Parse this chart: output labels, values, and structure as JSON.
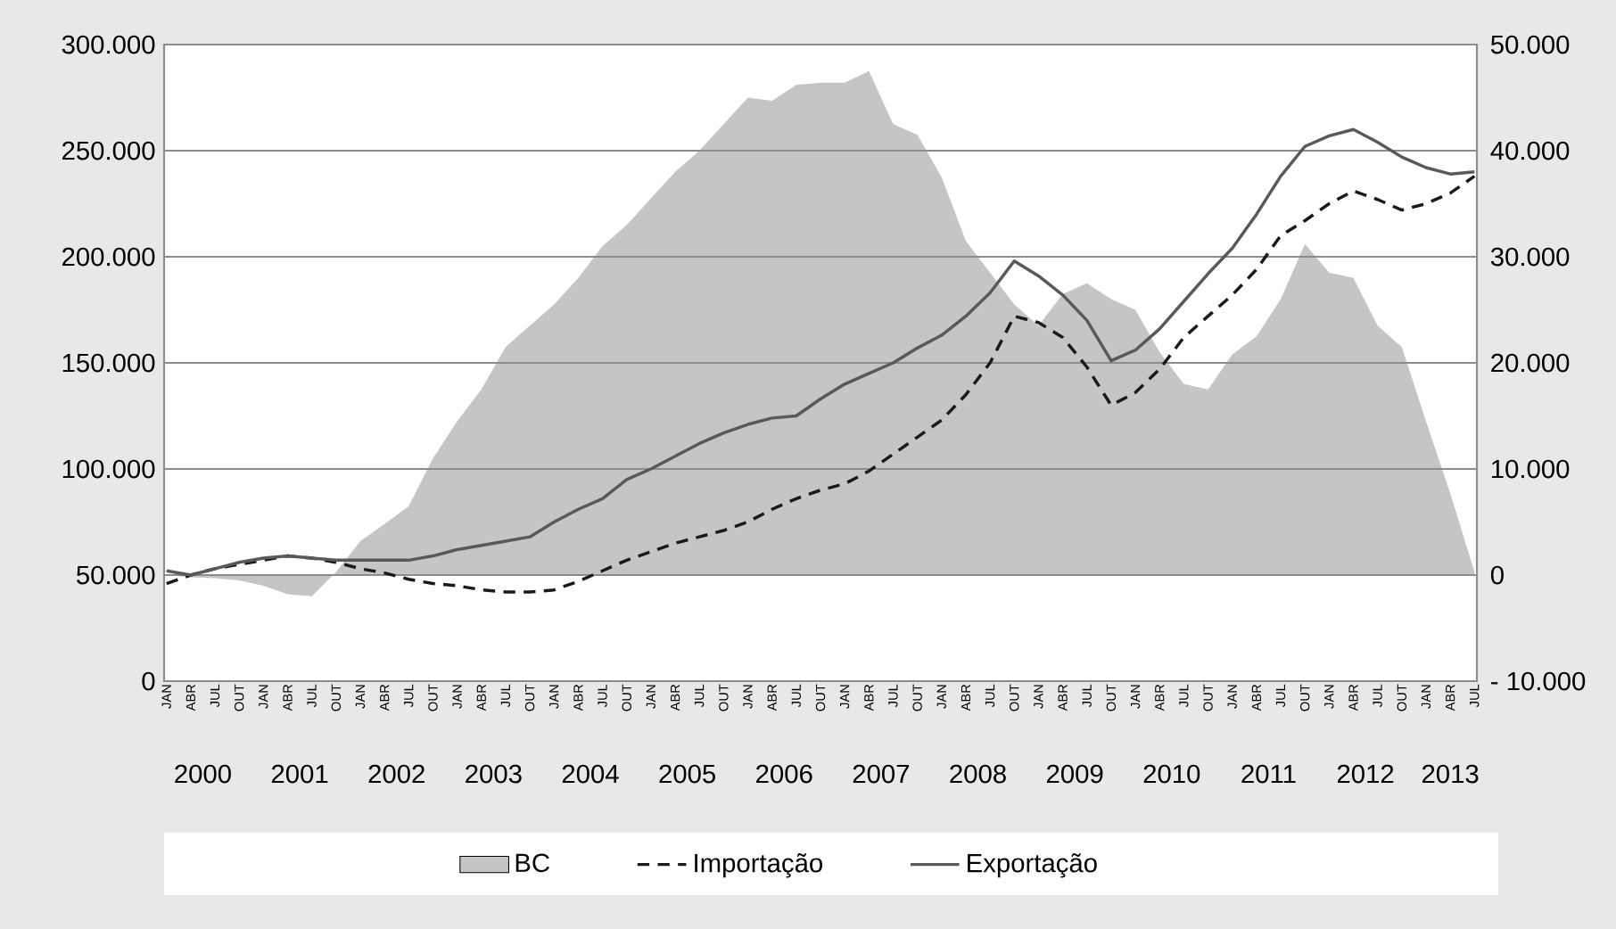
{
  "chart_data": {
    "type": "line",
    "categories": [
      "JAN",
      "ABR",
      "JUL",
      "OUT",
      "JAN",
      "ABR",
      "JUL",
      "OUT",
      "JAN",
      "ABR",
      "JUL",
      "OUT",
      "JAN",
      "ABR",
      "JUL",
      "OUT",
      "JAN",
      "ABR",
      "JUL",
      "OUT",
      "JAN",
      "ABR",
      "JUL",
      "OUT",
      "JAN",
      "ABR",
      "JUL",
      "OUT",
      "JAN",
      "ABR",
      "JUL",
      "OUT",
      "JAN",
      "ABR",
      "JUL",
      "OUT",
      "JAN",
      "ABR",
      "JUL",
      "OUT",
      "JAN",
      "ABR",
      "JUL",
      "OUT",
      "JAN",
      "ABR",
      "JUL",
      "OUT",
      "JAN",
      "ABR",
      "JUL",
      "OUT",
      "JAN",
      "ABR",
      "JUL"
    ],
    "series": [
      {
        "name": "BC",
        "type": "area",
        "axis": "y2",
        "color": "#c4c5c7",
        "values": [
          0,
          -200,
          -300,
          -500,
          -1000,
          -1800,
          -2000,
          300,
          3200,
          4800,
          6500,
          11000,
          14500,
          17500,
          21500,
          23500,
          25500,
          28000,
          31000,
          33000,
          35500,
          38000,
          40000,
          42500,
          45000,
          44700,
          46200,
          46400,
          46400,
          47500,
          42500,
          41500,
          37500,
          31500,
          28500,
          25500,
          23500,
          26500,
          27500,
          26000,
          25000,
          21000,
          18000,
          17500,
          20800,
          22500,
          26000,
          31200,
          28500,
          28000,
          23500,
          21500,
          14500,
          7700,
          300
        ]
      },
      {
        "name": "Importação",
        "line_style": "dashed",
        "color": "#1a1a1a",
        "values": [
          46000,
          50000,
          53000,
          55000,
          57000,
          59000,
          58000,
          56000,
          53000,
          51000,
          48000,
          46000,
          45000,
          43000,
          42000,
          42000,
          43000,
          47000,
          52000,
          57000,
          61000,
          65000,
          68000,
          71000,
          75000,
          81000,
          86000,
          90000,
          93000,
          99000,
          107000,
          115000,
          123000,
          135000,
          150000,
          172000,
          169000,
          162000,
          148000,
          130000,
          136000,
          147000,
          162000,
          172000,
          182000,
          194000,
          210000,
          217000,
          225000,
          231000,
          227000,
          222000,
          225000,
          230000,
          238000
        ]
      },
      {
        "name": "Exportação",
        "line_style": "solid",
        "color": "#595959",
        "values": [
          52000,
          50000,
          53000,
          56000,
          58000,
          59000,
          58000,
          57000,
          57000,
          57000,
          57000,
          59000,
          62000,
          64000,
          66000,
          68000,
          75000,
          81000,
          86000,
          95000,
          100000,
          106000,
          112000,
          117000,
          121000,
          124000,
          125000,
          133000,
          140000,
          145000,
          150000,
          157000,
          163000,
          172000,
          183000,
          198000,
          191000,
          182000,
          170000,
          151000,
          156000,
          166000,
          179000,
          192000,
          204000,
          220000,
          238000,
          252000,
          257000,
          260000,
          254000,
          247000,
          242000,
          239000,
          240000
        ]
      }
    ],
    "ylim": [
      0,
      300000
    ],
    "yticks": [
      0,
      {
        "value": 50000,
        "label": "50.000"
      },
      {
        "value": 100000,
        "label": "100.000"
      },
      {
        "value": 150000,
        "label": "150.000"
      },
      {
        "value": 200000,
        "label": "200.000"
      },
      {
        "value": 250000,
        "label": "250.000"
      },
      {
        "value": 300000,
        "label": "300.000"
      }
    ],
    "y2lim": [
      -10000,
      50000
    ],
    "y2ticks": [
      {
        "value": -10000,
        "label": "- 10.000"
      },
      0,
      {
        "value": 10000,
        "label": "10.000"
      },
      {
        "value": 20000,
        "label": "20.000"
      },
      {
        "value": 30000,
        "label": "30.000"
      },
      {
        "value": 40000,
        "label": "40.000"
      },
      {
        "value": 50000,
        "label": "50.000"
      }
    ],
    "annotations": [
      "2000",
      "2001",
      "2002",
      "2003",
      "2004",
      "2005",
      "2006",
      "2007",
      "2008",
      "2009",
      "2010",
      "2011",
      "2012",
      "2013"
    ],
    "grid": "y",
    "legend": "bottom"
  }
}
